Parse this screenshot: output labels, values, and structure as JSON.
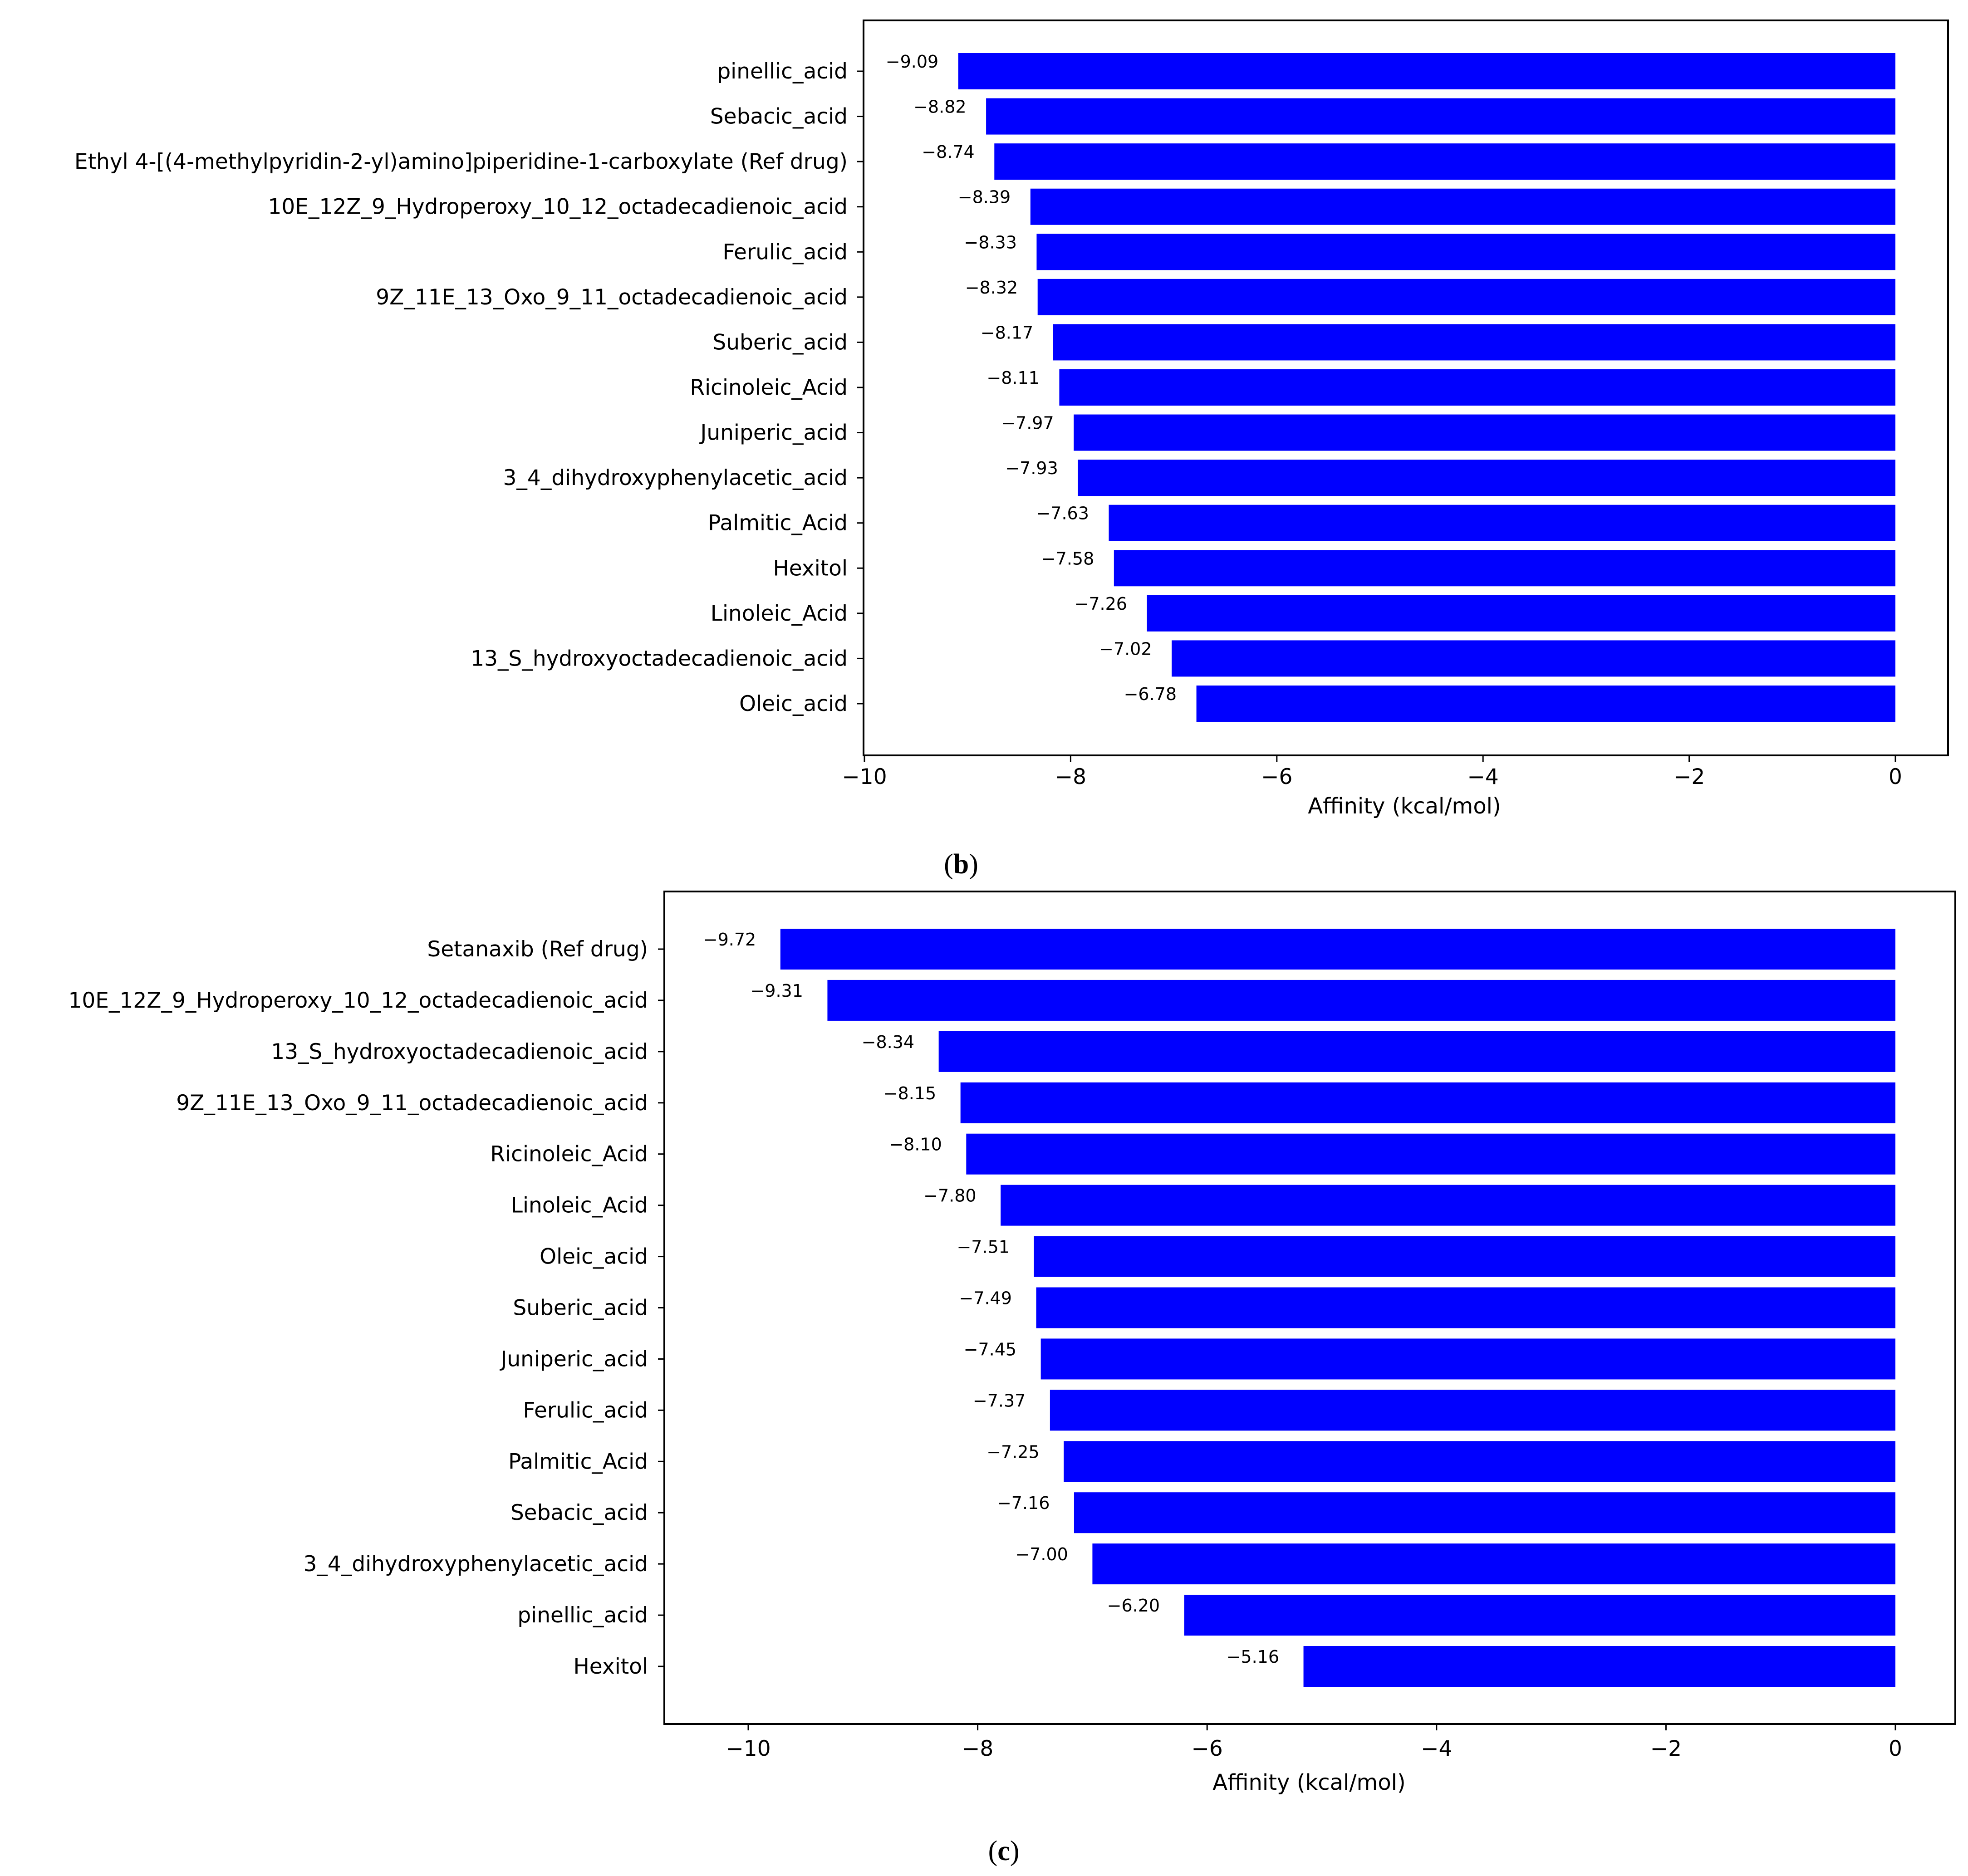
{
  "colors": {
    "bar": "#0000ff",
    "axis": "#000000",
    "background": "#ffffff"
  },
  "chart_data": [
    {
      "type": "bar",
      "orientation": "horizontal",
      "caption_letter": "b",
      "xlabel": "Affinity (kcal/mol)",
      "xlim": [
        -10,
        0
      ],
      "xticks": [
        -10,
        -8,
        -6,
        -4,
        -2,
        0
      ],
      "tick_labels": [
        "−10",
        "−8",
        "−6",
        "−4",
        "−2",
        "0"
      ],
      "categories": [
        "pinellic_acid",
        "Sebacic_acid",
        "Ethyl 4-[(4-methylpyridin-2-yl)amino]piperidine-1-carboxylate (Ref drug)",
        "10E_12Z_9_Hydroperoxy_10_12_octadecadienoic_acid",
        "Ferulic_acid",
        "9Z_11E_13_Oxo_9_11_octadecadienoic_acid",
        "Suberic_acid",
        "Ricinoleic_Acid",
        "Juniperic_acid",
        "3_4_dihydroxyphenylacetic_acid",
        "Palmitic_Acid",
        "Hexitol",
        "Linoleic_Acid",
        "13_S_hydroxyoctadecadienoic_acid",
        "Oleic_acid"
      ],
      "values": [
        -9.09,
        -8.82,
        -8.74,
        -8.39,
        -8.33,
        -8.32,
        -8.17,
        -8.11,
        -7.97,
        -7.93,
        -7.63,
        -7.58,
        -7.26,
        -7.02,
        -6.78
      ],
      "value_labels": [
        "−9.09",
        "−8.82",
        "−8.74",
        "−8.39",
        "−8.33",
        "−8.32",
        "−8.17",
        "−8.11",
        "−7.97",
        "−7.93",
        "−7.63",
        "−7.58",
        "−7.26",
        "−7.02",
        "−6.78"
      ]
    },
    {
      "type": "bar",
      "orientation": "horizontal",
      "caption_letter": "c",
      "xlabel": "Affinity (kcal/mol)",
      "xlim": [
        -10.7,
        0.5
      ],
      "xticks": [
        -10,
        -8,
        -6,
        -4,
        -2,
        0
      ],
      "tick_labels": [
        "−10",
        "−8",
        "−6",
        "−4",
        "−2",
        "0"
      ],
      "categories": [
        "Setanaxib (Ref drug)",
        "10E_12Z_9_Hydroperoxy_10_12_octadecadienoic_acid",
        "13_S_hydroxyoctadecadienoic_acid",
        "9Z_11E_13_Oxo_9_11_octadecadienoic_acid",
        "Ricinoleic_Acid",
        "Linoleic_Acid",
        "Oleic_acid",
        "Suberic_acid",
        "Juniperic_acid",
        "Ferulic_acid",
        "Palmitic_Acid",
        "Sebacic_acid",
        "3_4_dihydroxyphenylacetic_acid",
        "pinellic_acid",
        "Hexitol"
      ],
      "values": [
        -9.72,
        -9.31,
        -8.34,
        -8.15,
        -8.1,
        -7.8,
        -7.51,
        -7.49,
        -7.45,
        -7.37,
        -7.25,
        -7.16,
        -7.0,
        -6.2,
        -5.16
      ],
      "value_labels": [
        "−9.72",
        "−9.31",
        "−8.34",
        "−8.15",
        "−8.10",
        "−7.80",
        "−7.51",
        "−7.49",
        "−7.45",
        "−7.37",
        "−7.25",
        "−7.16",
        "−7.00",
        "−6.20",
        "−5.16"
      ]
    }
  ]
}
